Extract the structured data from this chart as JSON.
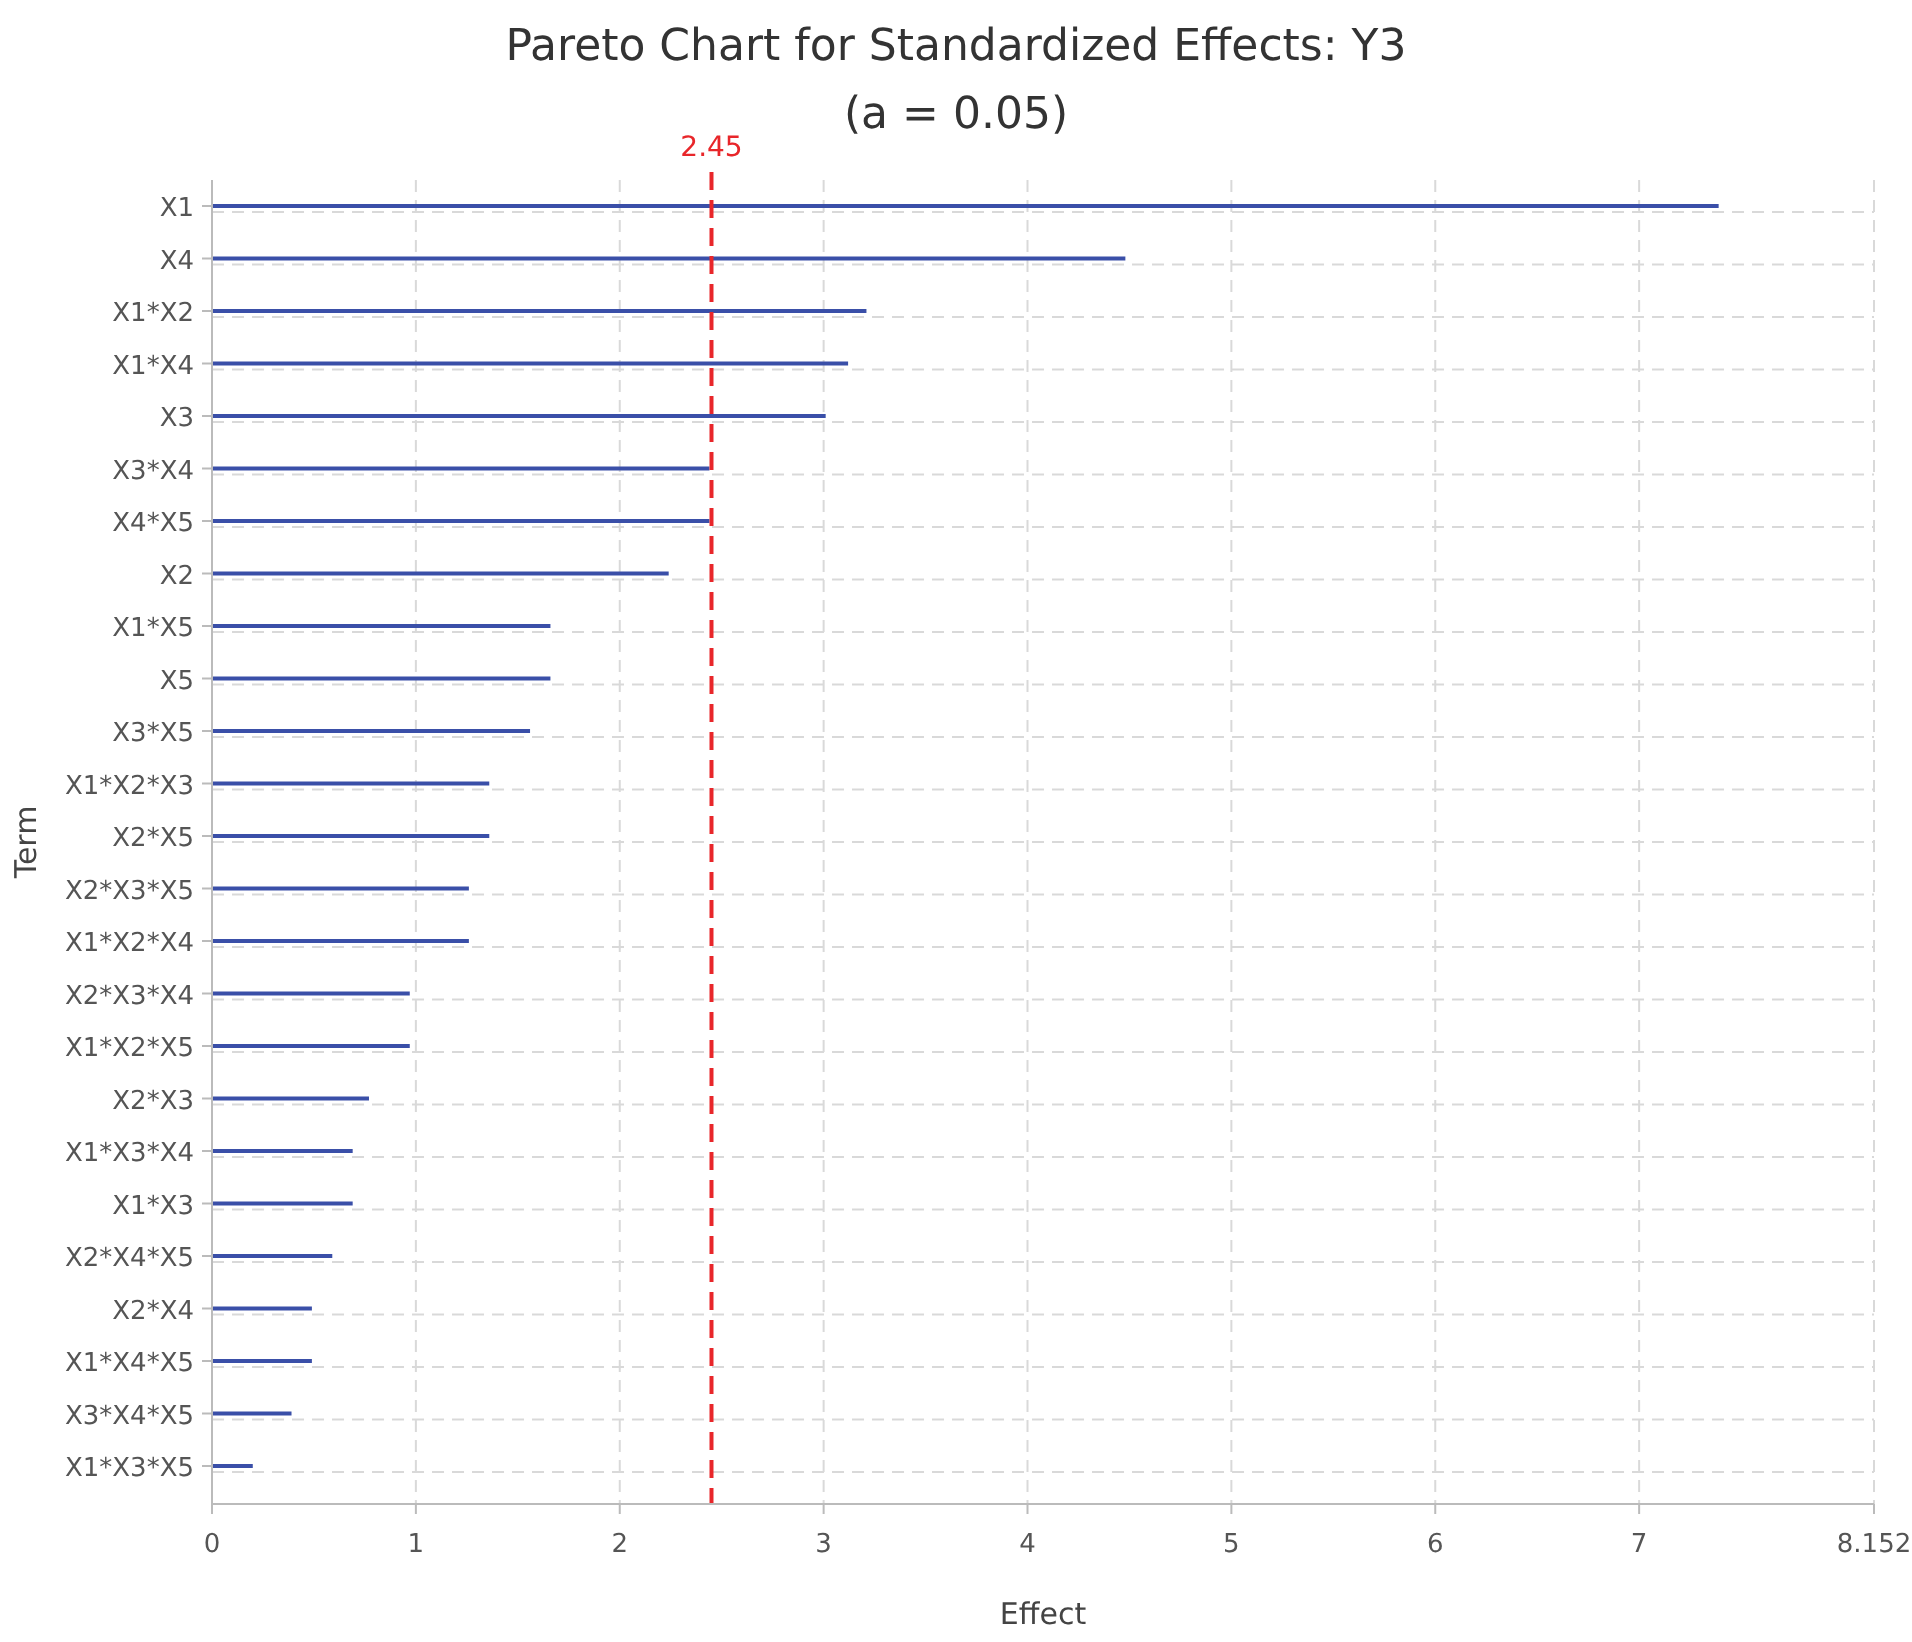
{
  "chart_data": {
    "type": "bar",
    "orientation": "horizontal",
    "title": "Pareto Chart for Standardized Effects: Y3",
    "subtitle": "(a = 0.05)",
    "xlabel": "Effect",
    "ylabel": "Term",
    "categories": [
      "X1",
      "X4",
      "X1*X2",
      "X1*X4",
      "X3",
      "X3*X4",
      "X4*X5",
      "X2",
      "X1*X5",
      "X5",
      "X3*X5",
      "X1*X2*X3",
      "X2*X5",
      "X2*X3*X5",
      "X1*X2*X4",
      "X2*X3*X4",
      "X1*X2*X5",
      "X2*X3",
      "X1*X3*X4",
      "X1*X3",
      "X2*X4*X5",
      "X2*X4",
      "X1*X4*X5",
      "X3*X4*X5",
      "X1*X3*X5"
    ],
    "values": [
      7.39,
      4.48,
      3.21,
      3.12,
      3.01,
      2.44,
      2.44,
      2.24,
      1.66,
      1.66,
      1.56,
      1.36,
      1.36,
      1.26,
      1.26,
      0.97,
      0.97,
      0.77,
      0.69,
      0.69,
      0.59,
      0.49,
      0.49,
      0.39,
      0.2
    ],
    "color": "#3a4fa8",
    "xlim": [
      0,
      8.152
    ],
    "xticks": [
      0,
      1,
      2,
      3,
      4,
      5,
      6,
      7,
      8.152
    ],
    "ref_lines": [
      {
        "axis": "x",
        "value": 2.45,
        "label": "2.45",
        "color": "#e8262a",
        "line_style": "dashed"
      }
    ],
    "grid": true
  }
}
